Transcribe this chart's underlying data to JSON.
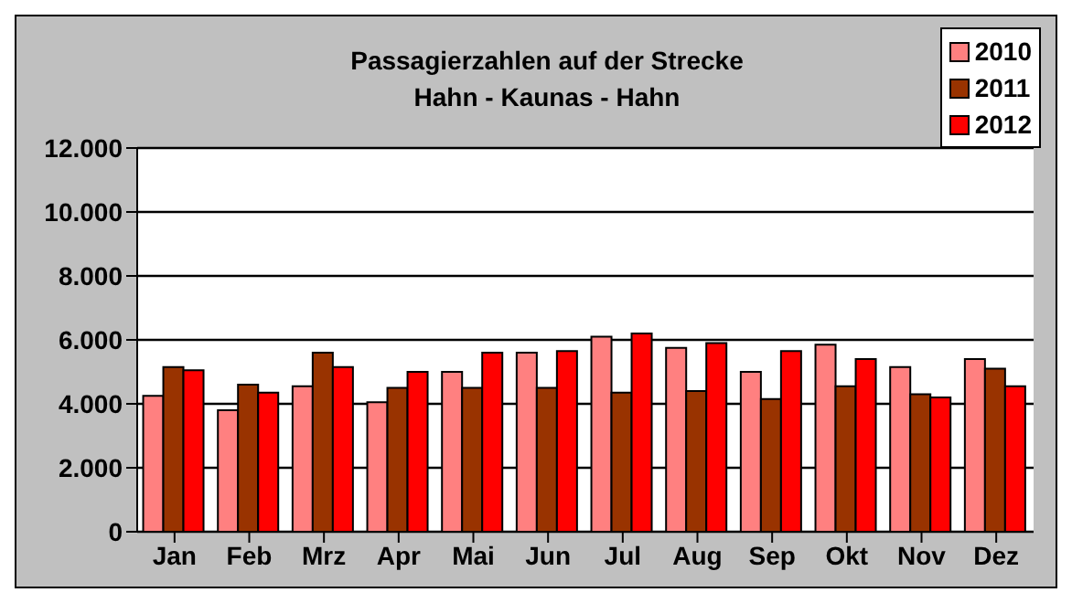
{
  "chart_data": {
    "type": "bar",
    "title": "Passagierzahlen auf der Strecke\nHahn - Kaunas - Hahn",
    "categories": [
      "Jan",
      "Feb",
      "Mrz",
      "Apr",
      "Mai",
      "Jun",
      "Jul",
      "Aug",
      "Sep",
      "Okt",
      "Nov",
      "Dez"
    ],
    "series": [
      {
        "name": "2010",
        "color": "#ff8080",
        "values": [
          4250,
          3800,
          4550,
          4050,
          5000,
          5600,
          6100,
          5750,
          5000,
          5850,
          5150,
          5400
        ]
      },
      {
        "name": "2011",
        "color": "#993300",
        "values": [
          5150,
          4600,
          5600,
          4500,
          4500,
          4500,
          4350,
          4400,
          4150,
          4550,
          4300,
          5100
        ]
      },
      {
        "name": "2012",
        "color": "#ff0000",
        "values": [
          5050,
          4350,
          5150,
          5000,
          5600,
          5650,
          6200,
          5900,
          5650,
          5400,
          4200,
          4550
        ]
      }
    ],
    "ylim": [
      0,
      12000
    ],
    "yticks": [
      {
        "value": 0,
        "label": "0"
      },
      {
        "value": 2000,
        "label": "2.000"
      },
      {
        "value": 4000,
        "label": "4.000"
      },
      {
        "value": 6000,
        "label": "6.000"
      },
      {
        "value": 8000,
        "label": "8.000"
      },
      {
        "value": 10000,
        "label": "10.000"
      },
      {
        "value": 12000,
        "label": "12.000"
      }
    ],
    "grid": "y",
    "legend": "top right"
  }
}
